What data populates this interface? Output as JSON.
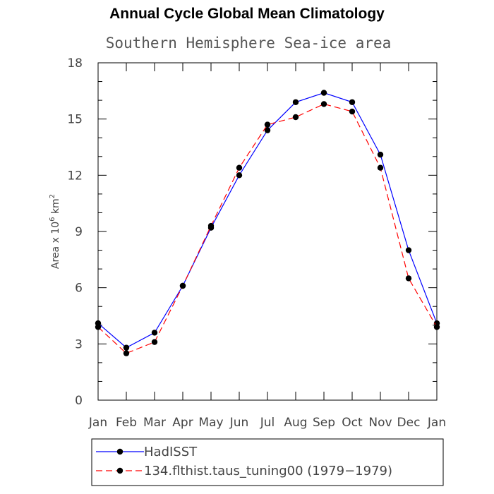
{
  "chart_data": {
    "type": "line",
    "title": "Annual Cycle Global Mean Climatology",
    "subtitle": "Southern Hemisphere Sea-ice area",
    "ylabel": "Area x 10",
    "ylabel_sup1": "6",
    "ylabel_mid": " km",
    "ylabel_sup2": "2",
    "ylim": [
      0,
      18
    ],
    "yticks": [
      0,
      3,
      6,
      9,
      12,
      15,
      18
    ],
    "categories": [
      "Jan",
      "Feb",
      "Mar",
      "Apr",
      "May",
      "Jun",
      "Jul",
      "Aug",
      "Sep",
      "Oct",
      "Nov",
      "Dec",
      "Jan"
    ],
    "series": [
      {
        "name": "HadISST",
        "color": "#0000ff",
        "dash": "solid",
        "values": [
          4.1,
          2.8,
          3.6,
          6.1,
          9.2,
          12.0,
          14.4,
          15.9,
          16.4,
          15.9,
          13.1,
          8.0,
          4.1
        ]
      },
      {
        "name": "134.flthist.taus_tuning00 (1979−1979)",
        "color": "#ff0000",
        "dash": "dashed",
        "values": [
          3.9,
          2.5,
          3.1,
          6.1,
          9.3,
          12.4,
          14.7,
          15.1,
          15.8,
          15.4,
          12.4,
          6.5,
          3.9
        ]
      }
    ],
    "legend": "bottom"
  }
}
